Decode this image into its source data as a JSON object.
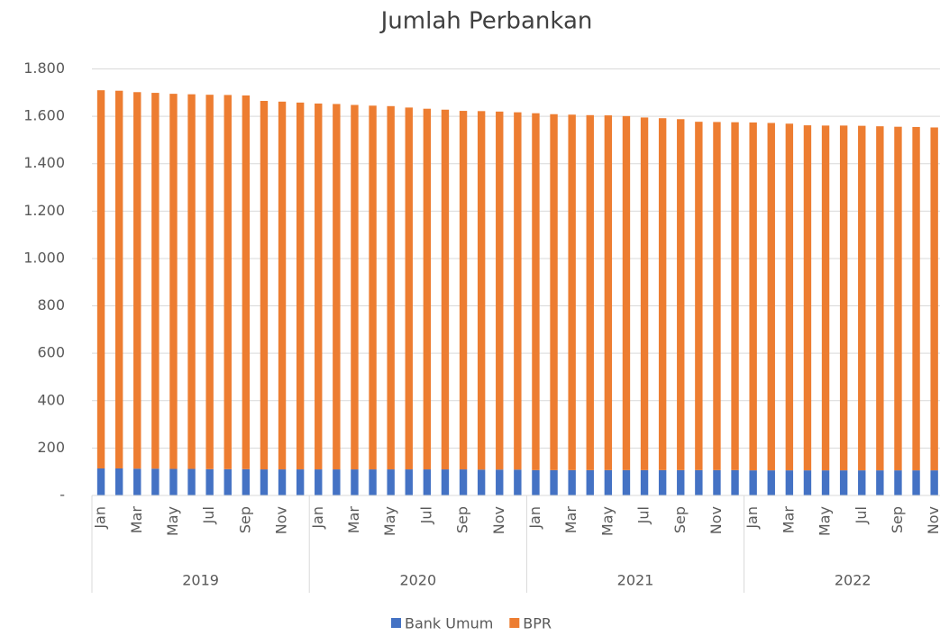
{
  "chart_data": {
    "type": "stacked_bar",
    "title": "Jumlah Perbankan",
    "categories": [
      "Jan",
      null,
      "Mar",
      null,
      "May",
      null,
      "Jul",
      null,
      "Sep",
      null,
      "Nov",
      null,
      "Jan",
      null,
      "Mar",
      null,
      "May",
      null,
      "Jul",
      null,
      "Sep",
      null,
      "Nov",
      null,
      "Jan",
      null,
      "Mar",
      null,
      "May",
      null,
      "Jul",
      null,
      "Sep",
      null,
      "Nov",
      null,
      "Jan",
      null,
      "Mar",
      null,
      "May",
      null,
      "Jul",
      null,
      "Sep",
      null,
      "Nov",
      null
    ],
    "category_groups": [
      "2019",
      "2020",
      "2021",
      "2022"
    ],
    "series": [
      {
        "name": "Bank Umum",
        "color": "#4472c4",
        "values": [
          114,
          114,
          113,
          113,
          112,
          112,
          111,
          111,
          111,
          110,
          110,
          110,
          110,
          110,
          110,
          110,
          110,
          110,
          110,
          110,
          110,
          109,
          109,
          109,
          107,
          107,
          107,
          107,
          107,
          107,
          107,
          107,
          107,
          107,
          107,
          107,
          106,
          106,
          106,
          106,
          106,
          106,
          106,
          106,
          106,
          106,
          106,
          106
        ]
      },
      {
        "name": "BPR",
        "color": "#ed7d31",
        "values": [
          1596,
          1594,
          1589,
          1586,
          1583,
          1581,
          1580,
          1579,
          1577,
          1555,
          1552,
          1548,
          1544,
          1542,
          1538,
          1535,
          1533,
          1527,
          1522,
          1518,
          1513,
          1513,
          1511,
          1508,
          1506,
          1502,
          1500,
          1498,
          1497,
          1494,
          1488,
          1485,
          1481,
          1470,
          1469,
          1468,
          1468,
          1466,
          1463,
          1456,
          1455,
          1455,
          1454,
          1452,
          1450,
          1449,
          1447,
          1445
        ]
      }
    ],
    "ylim": [
      0,
      1800
    ],
    "yticks": [
      {
        "value": 0,
        "label": "-"
      },
      200,
      400,
      600,
      800,
      {
        "value": 1000,
        "label": "1.000"
      },
      {
        "value": 1200,
        "label": "1.200"
      },
      {
        "value": 1400,
        "label": "1.400"
      },
      {
        "value": 1600,
        "label": "1.600"
      },
      {
        "value": 1800,
        "label": "1.800"
      }
    ],
    "grid": true,
    "legend": "bottom"
  }
}
